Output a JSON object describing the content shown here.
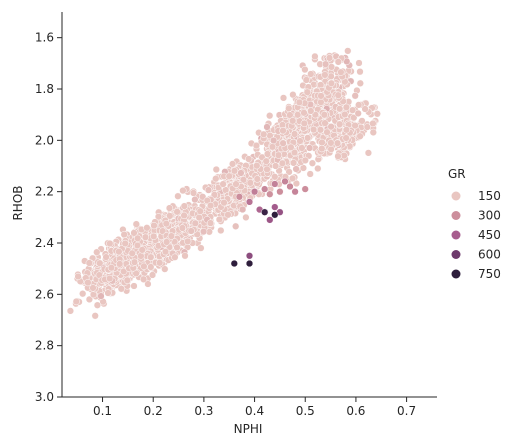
{
  "chart_data": {
    "type": "scatter",
    "title": "",
    "xlabel": "NPHI",
    "ylabel": "RHOB",
    "xlim": [
      0.02,
      0.76
    ],
    "ylim": [
      3.0,
      1.5
    ],
    "y_inverted": true,
    "grid": false,
    "x_ticks": [
      "0.1",
      "0.2",
      "0.3",
      "0.4",
      "0.5",
      "0.6",
      "0.7"
    ],
    "y_ticks": [
      "1.6",
      "1.8",
      "2.0",
      "2.2",
      "2.4",
      "2.6",
      "2.8",
      "3.0"
    ],
    "legend": {
      "title": "GR",
      "placement": "right",
      "entries": [
        {
          "label": "150",
          "color": "#e9c6c1"
        },
        {
          "label": "300",
          "color": "#cc8e9c"
        },
        {
          "label": "450",
          "color": "#a75d8e"
        },
        {
          "label": "600",
          "color": "#6e3a6c"
        },
        {
          "label": "750",
          "color": "#2e1e3c"
        }
      ]
    },
    "clusters": [
      {
        "nphi": 0.14,
        "rhob": 2.48,
        "nphi_spread": 0.06,
        "rhob_spread": 0.08,
        "gr": 90,
        "count": 650
      },
      {
        "nphi": 0.24,
        "rhob": 2.36,
        "nphi_spread": 0.06,
        "rhob_spread": 0.08,
        "gr": 100,
        "count": 500
      },
      {
        "nphi": 0.36,
        "rhob": 2.2,
        "nphi_spread": 0.05,
        "rhob_spread": 0.08,
        "gr": 110,
        "count": 350
      },
      {
        "nphi": 0.47,
        "rhob": 2.0,
        "nphi_spread": 0.05,
        "rhob_spread": 0.1,
        "gr": 110,
        "count": 400
      },
      {
        "nphi": 0.53,
        "rhob": 1.85,
        "nphi_spread": 0.05,
        "rhob_spread": 0.1,
        "gr": 110,
        "count": 450
      },
      {
        "nphi": 0.58,
        "rhob": 1.97,
        "nphi_spread": 0.05,
        "rhob_spread": 0.07,
        "gr": 100,
        "count": 200
      }
    ],
    "points": [
      {
        "nphi": 0.42,
        "rhob": 2.19,
        "gr": 320
      },
      {
        "nphi": 0.44,
        "rhob": 2.17,
        "gr": 340
      },
      {
        "nphi": 0.46,
        "rhob": 2.16,
        "gr": 330
      },
      {
        "nphi": 0.47,
        "rhob": 2.18,
        "gr": 310
      },
      {
        "nphi": 0.45,
        "rhob": 2.2,
        "gr": 300
      },
      {
        "nphi": 0.48,
        "rhob": 2.2,
        "gr": 330
      },
      {
        "nphi": 0.43,
        "rhob": 2.21,
        "gr": 290
      },
      {
        "nphi": 0.4,
        "rhob": 2.2,
        "gr": 350
      },
      {
        "nphi": 0.39,
        "rhob": 2.24,
        "gr": 380
      },
      {
        "nphi": 0.41,
        "rhob": 2.27,
        "gr": 420
      },
      {
        "nphi": 0.44,
        "rhob": 2.26,
        "gr": 460
      },
      {
        "nphi": 0.45,
        "rhob": 2.28,
        "gr": 500
      },
      {
        "nphi": 0.42,
        "rhob": 2.28,
        "gr": 720
      },
      {
        "nphi": 0.44,
        "rhob": 2.29,
        "gr": 760
      },
      {
        "nphi": 0.43,
        "rhob": 2.31,
        "gr": 480
      },
      {
        "nphi": 0.37,
        "rhob": 2.22,
        "gr": 300
      },
      {
        "nphi": 0.5,
        "rhob": 2.19,
        "gr": 300
      },
      {
        "nphi": 0.39,
        "rhob": 2.45,
        "gr": 520
      },
      {
        "nphi": 0.36,
        "rhob": 2.48,
        "gr": 760
      },
      {
        "nphi": 0.39,
        "rhob": 2.48,
        "gr": 750
      }
    ]
  }
}
